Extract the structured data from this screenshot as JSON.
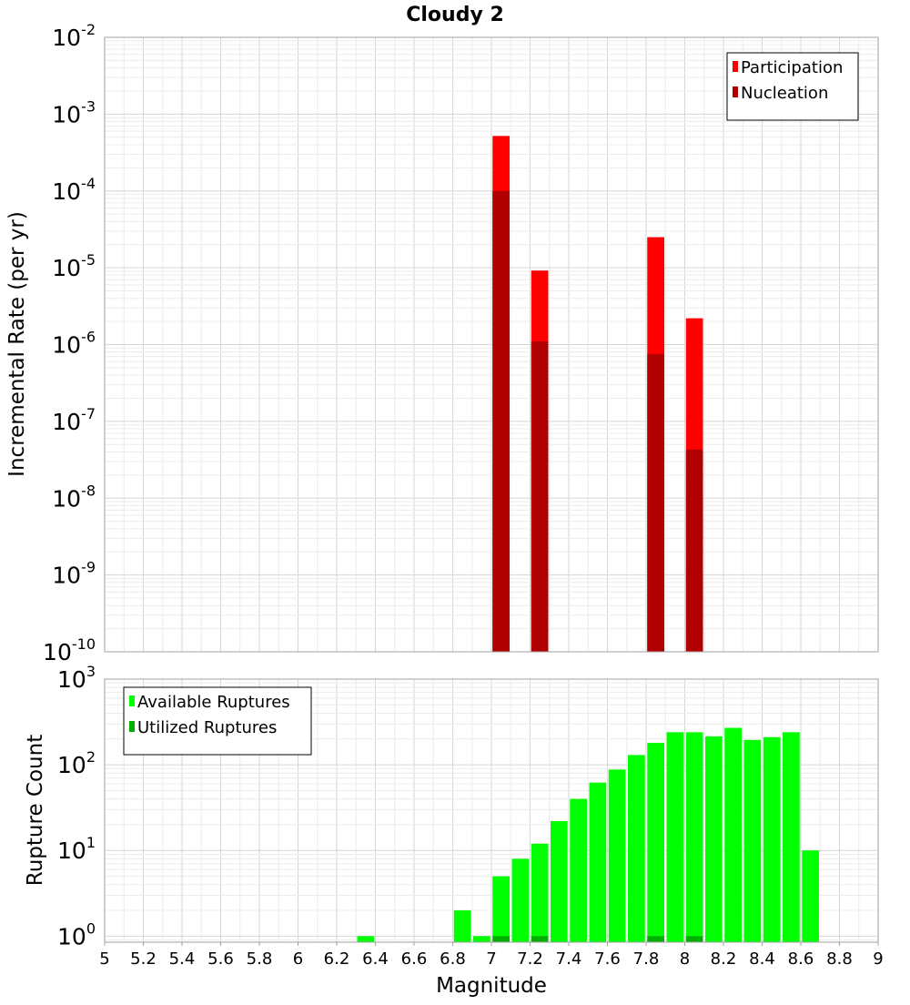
{
  "chart_data": {
    "title": "Cloudy 2",
    "xlabel": "Magnitude",
    "xlim": [
      5,
      9
    ],
    "x_ticks": [
      "5",
      "5.2",
      "5.4",
      "5.6",
      "5.8",
      "6",
      "6.2",
      "6.4",
      "6.6",
      "6.8",
      "7",
      "7.2",
      "7.4",
      "7.6",
      "7.8",
      "8",
      "8.2",
      "8.4",
      "8.6",
      "8.8",
      "9"
    ],
    "colors": {
      "participation": "#ff0000",
      "nucleation": "#b00000",
      "available": "#00ff00",
      "utilized": "#00b000"
    },
    "panels": [
      {
        "type": "bar",
        "ylabel": "Incremental Rate (per yr)",
        "yscale": "log",
        "ylim": [
          1e-10,
          0.01
        ],
        "y_exponents": [
          -10,
          -9,
          -8,
          -7,
          -6,
          -5,
          -4,
          -3,
          -2
        ],
        "legend_position": "top-right",
        "series": [
          {
            "name": "Participation",
            "x": [
              7.05,
              7.25,
              7.85,
              8.05
            ],
            "values": [
              0.00052,
              9.2e-06,
              2.5e-05,
              2.2e-06
            ]
          },
          {
            "name": "Nucleation",
            "x": [
              7.05,
              7.25,
              7.85,
              8.05
            ],
            "values": [
              0.0001,
              1.1e-06,
              7.5e-07,
              4.3e-08
            ]
          }
        ]
      },
      {
        "type": "bar",
        "ylabel": "Rupture Count",
        "yscale": "log",
        "ylim": [
          0.85,
          1000
        ],
        "y_exponents": [
          0,
          1,
          2,
          3
        ],
        "legend_position": "top-left",
        "series": [
          {
            "name": "Available Ruptures",
            "x": [
              6.35,
              6.85,
              6.95,
              7.05,
              7.15,
              7.25,
              7.35,
              7.45,
              7.55,
              7.65,
              7.75,
              7.85,
              7.95,
              8.05,
              8.15,
              8.25,
              8.35,
              8.45,
              8.55,
              8.65
            ],
            "values": [
              1,
              2,
              1,
              5,
              8,
              12,
              22,
              40,
              62,
              88,
              130,
              180,
              240,
              240,
              215,
              270,
              195,
              210,
              240,
              10
            ]
          },
          {
            "name": "Utilized Ruptures",
            "x": [
              7.05,
              7.25,
              7.85,
              8.05
            ],
            "values": [
              1,
              1,
              1,
              1
            ]
          }
        ]
      }
    ]
  }
}
